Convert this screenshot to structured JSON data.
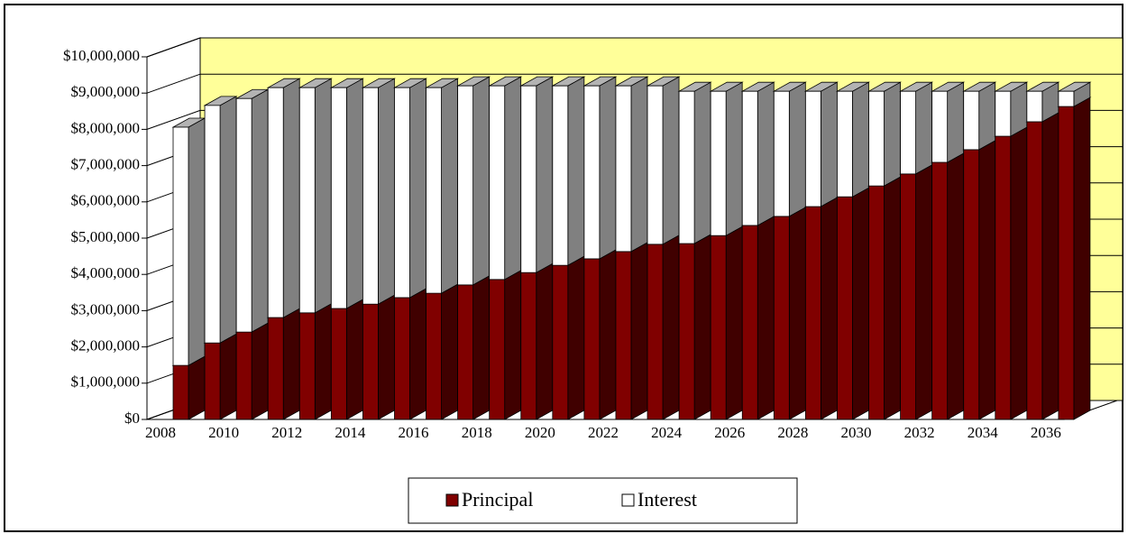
{
  "chart_data": {
    "type": "bar3d_stacked",
    "categories": [
      "2008",
      null,
      "2010",
      null,
      "2012",
      null,
      "2014",
      null,
      "2016",
      null,
      "2018",
      null,
      "2020",
      null,
      "2022",
      null,
      "2024",
      null,
      "2026",
      null,
      "2028",
      null,
      "2030",
      null,
      "2032",
      null,
      "2034",
      null,
      "2036"
    ],
    "series": [
      {
        "name": "Principal",
        "color": "#800000",
        "values": [
          1490000,
          2110000,
          2410000,
          2810000,
          2940000,
          3060000,
          3180000,
          3360000,
          3480000,
          3710000,
          3860000,
          4050000,
          4250000,
          4430000,
          4630000,
          4830000,
          4850000,
          5070000,
          5350000,
          5600000,
          5870000,
          6140000,
          6440000,
          6770000,
          7090000,
          7440000,
          7810000,
          8210000,
          8630000
        ]
      },
      {
        "name": "Interest",
        "color": "#ffffff",
        "values": [
          6570000,
          6550000,
          6440000,
          6340000,
          6210000,
          6090000,
          5970000,
          5790000,
          5670000,
          5490000,
          5340000,
          5150000,
          4950000,
          4770000,
          4570000,
          4370000,
          4200000,
          3980000,
          3700000,
          3450000,
          3180000,
          2910000,
          2610000,
          2280000,
          1960000,
          1610000,
          1240000,
          840000,
          420000
        ]
      }
    ],
    "ylim": [
      0,
      10000000
    ],
    "yticks": [
      {
        "value": 0,
        "label": "$0"
      },
      {
        "value": 1000000,
        "label": "$1,000,000"
      },
      {
        "value": 2000000,
        "label": "$2,000,000"
      },
      {
        "value": 3000000,
        "label": "$3,000,000"
      },
      {
        "value": 4000000,
        "label": "$4,000,000"
      },
      {
        "value": 5000000,
        "label": "$5,000,000"
      },
      {
        "value": 6000000,
        "label": "$6,000,000"
      },
      {
        "value": 7000000,
        "label": "$7,000,000"
      },
      {
        "value": 8000000,
        "label": "$8,000,000"
      },
      {
        "value": 9000000,
        "label": "$9,000,000"
      },
      {
        "value": 10000000,
        "label": "$10,000,000"
      }
    ],
    "grid": true,
    "wall_color": "#ffff99",
    "legend": "bottom"
  }
}
